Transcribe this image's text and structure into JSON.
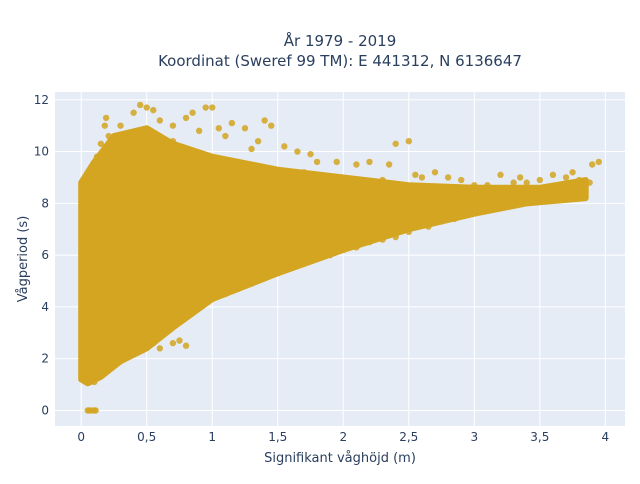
{
  "chart_data": {
    "type": "scatter",
    "title": [
      "År 1979 - 2019",
      "Koordinat (Sweref 99 TM): E 441312, N 6136647"
    ],
    "xlabel": "Signifikant våghöjd (m)",
    "ylabel": "Vågperiod (s)",
    "xlim": [
      -0.2,
      4.15
    ],
    "ylim": [
      -0.6,
      12.3
    ],
    "x_ticks": [
      0,
      0.5,
      1,
      1.5,
      2,
      2.5,
      3,
      3.5,
      4
    ],
    "x_tick_labels": [
      "0",
      "0,5",
      "1",
      "1,5",
      "2",
      "2,5",
      "3",
      "3,5",
      "4"
    ],
    "y_ticks": [
      0,
      2,
      4,
      6,
      8,
      10,
      12
    ],
    "y_tick_labels": [
      "0",
      "2",
      "4",
      "6",
      "8",
      "10",
      "12"
    ],
    "grid": true,
    "legend": "none",
    "colors": {
      "marker": "#d4a521",
      "plot_bg": "#e5ecf6",
      "grid": "#ffffff",
      "text": "#2a3f5f"
    },
    "series": [
      {
        "points": [
          [
            0.05,
            0.0
          ],
          [
            0.06,
            0.0
          ],
          [
            0.08,
            0.0
          ],
          [
            0.1,
            0.0
          ],
          [
            0.11,
            0.0
          ],
          [
            0.02,
            1.2
          ],
          [
            0.03,
            1.4
          ],
          [
            0.05,
            1.3
          ],
          [
            0.08,
            1.2
          ],
          [
            0.1,
            1.1
          ],
          [
            0.12,
            1.25
          ],
          [
            0.15,
            1.5
          ],
          [
            0.04,
            3.3
          ],
          [
            0.06,
            4.9
          ],
          [
            0.05,
            6.1
          ],
          [
            0.07,
            7.3
          ],
          [
            0.05,
            8.3
          ],
          [
            0.06,
            8.8
          ],
          [
            0.1,
            9.3
          ],
          [
            0.12,
            9.8
          ],
          [
            0.15,
            10.3
          ],
          [
            0.18,
            11.0
          ],
          [
            0.19,
            11.3
          ],
          [
            0.21,
            10.6
          ],
          [
            0.3,
            11.0
          ],
          [
            0.4,
            11.5
          ],
          [
            0.45,
            11.8
          ],
          [
            0.5,
            11.7
          ],
          [
            0.55,
            11.6
          ],
          [
            0.6,
            11.2
          ],
          [
            0.7,
            11.0
          ],
          [
            0.8,
            11.3
          ],
          [
            0.85,
            11.5
          ],
          [
            0.95,
            11.7
          ],
          [
            1.0,
            11.7
          ],
          [
            0.9,
            10.8
          ],
          [
            1.05,
            10.9
          ],
          [
            1.1,
            10.6
          ],
          [
            1.15,
            11.1
          ],
          [
            1.25,
            10.9
          ],
          [
            1.4,
            11.2
          ],
          [
            1.45,
            11.0
          ],
          [
            1.3,
            10.1
          ],
          [
            1.35,
            10.4
          ],
          [
            1.55,
            10.2
          ],
          [
            1.65,
            10.0
          ],
          [
            1.75,
            9.9
          ],
          [
            1.8,
            9.6
          ],
          [
            1.95,
            9.6
          ],
          [
            2.1,
            9.5
          ],
          [
            2.2,
            9.6
          ],
          [
            2.35,
            9.5
          ],
          [
            2.4,
            10.3
          ],
          [
            2.5,
            10.4
          ],
          [
            2.3,
            8.9
          ],
          [
            2.55,
            9.1
          ],
          [
            2.6,
            9.0
          ],
          [
            2.7,
            9.2
          ],
          [
            2.8,
            9.0
          ],
          [
            2.9,
            8.9
          ],
          [
            3.0,
            8.7
          ],
          [
            3.1,
            8.7
          ],
          [
            3.2,
            9.1
          ],
          [
            3.3,
            8.8
          ],
          [
            3.35,
            9.0
          ],
          [
            3.4,
            8.8
          ],
          [
            3.5,
            8.9
          ],
          [
            3.6,
            9.1
          ],
          [
            3.7,
            9.0
          ],
          [
            3.75,
            9.2
          ],
          [
            3.8,
            8.9
          ],
          [
            3.9,
            9.5
          ],
          [
            3.95,
            9.6
          ],
          [
            3.88,
            8.8
          ],
          [
            3.62,
            8.5
          ],
          [
            3.55,
            8.2
          ],
          [
            3.45,
            8.3
          ],
          [
            3.3,
            8.1
          ],
          [
            3.2,
            7.9
          ],
          [
            3.05,
            7.8
          ],
          [
            2.95,
            7.6
          ],
          [
            2.85,
            7.4
          ],
          [
            2.75,
            7.3
          ],
          [
            2.65,
            7.1
          ],
          [
            2.5,
            6.9
          ],
          [
            2.4,
            6.7
          ],
          [
            2.3,
            6.6
          ],
          [
            2.2,
            6.5
          ],
          [
            2.1,
            6.3
          ],
          [
            2.0,
            6.2
          ],
          [
            1.9,
            6.0
          ],
          [
            1.8,
            5.9
          ],
          [
            1.7,
            5.7
          ],
          [
            1.6,
            5.5
          ],
          [
            1.5,
            5.3
          ],
          [
            1.4,
            5.1
          ],
          [
            1.3,
            4.9
          ],
          [
            1.2,
            4.7
          ],
          [
            1.1,
            4.5
          ],
          [
            1.0,
            4.3
          ],
          [
            0.9,
            4.0
          ],
          [
            0.8,
            3.7
          ],
          [
            0.7,
            3.4
          ],
          [
            0.6,
            3.1
          ],
          [
            0.55,
            2.6
          ],
          [
            0.5,
            2.5
          ],
          [
            0.45,
            2.3
          ],
          [
            0.4,
            2.2
          ],
          [
            0.35,
            2.1
          ],
          [
            0.3,
            1.9
          ],
          [
            0.25,
            1.8
          ],
          [
            0.2,
            1.6
          ],
          [
            0.6,
            2.4
          ],
          [
            0.7,
            2.6
          ],
          [
            0.8,
            2.5
          ],
          [
            0.75,
            2.7
          ],
          [
            0.15,
            2.5
          ],
          [
            0.25,
            3.1
          ],
          [
            0.35,
            3.6
          ],
          [
            0.45,
            4.2
          ],
          [
            0.2,
            4.6
          ],
          [
            0.3,
            5.2
          ],
          [
            0.4,
            5.8
          ],
          [
            0.5,
            6.3
          ],
          [
            0.6,
            6.8
          ],
          [
            0.7,
            7.2
          ],
          [
            0.8,
            7.6
          ],
          [
            0.9,
            8.0
          ],
          [
            1.0,
            8.3
          ],
          [
            1.1,
            8.5
          ],
          [
            1.2,
            8.7
          ],
          [
            1.3,
            8.9
          ],
          [
            1.5,
            9.1
          ],
          [
            1.7,
            9.2
          ],
          [
            1.9,
            9.0
          ],
          [
            2.1,
            8.7
          ],
          [
            0.25,
            7.4
          ],
          [
            0.35,
            8.4
          ],
          [
            0.4,
            9.1
          ],
          [
            0.5,
            9.7
          ],
          [
            0.6,
            10.2
          ],
          [
            0.7,
            10.4
          ],
          [
            0.8,
            10.0
          ],
          [
            0.3,
            10.2
          ],
          [
            0.2,
            9.0
          ],
          [
            0.15,
            7.9
          ],
          [
            0.1,
            6.7
          ],
          [
            0.12,
            5.5
          ],
          [
            0.1,
            4.2
          ],
          [
            0.1,
            2.8
          ],
          [
            1.0,
            6.1
          ],
          [
            1.2,
            6.4
          ],
          [
            1.4,
            6.7
          ],
          [
            1.6,
            7.0
          ],
          [
            1.8,
            7.2
          ],
          [
            2.0,
            7.4
          ],
          [
            2.2,
            7.5
          ],
          [
            2.4,
            7.7
          ],
          [
            2.6,
            7.8
          ],
          [
            2.8,
            7.9
          ],
          [
            3.0,
            8.1
          ],
          [
            3.2,
            8.3
          ],
          [
            3.4,
            8.4
          ],
          [
            3.6,
            8.6
          ],
          [
            2.6,
            8.3
          ],
          [
            2.9,
            8.4
          ],
          [
            1.6,
            8.0
          ],
          [
            1.4,
            7.8
          ],
          [
            1.1,
            7.3
          ],
          [
            0.9,
            6.9
          ],
          [
            0.65,
            5.4
          ],
          [
            0.85,
            5.0
          ],
          [
            1.05,
            5.3
          ],
          [
            1.25,
            5.6
          ],
          [
            1.45,
            6.0
          ],
          [
            1.65,
            6.2
          ],
          [
            1.85,
            6.6
          ],
          [
            2.05,
            6.8
          ],
          [
            2.25,
            7.0
          ],
          [
            2.45,
            7.2
          ]
        ]
      }
    ]
  }
}
